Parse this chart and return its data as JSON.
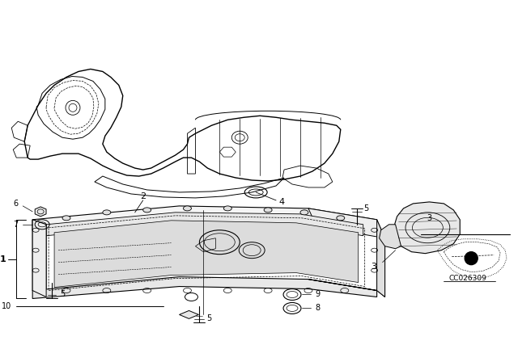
{
  "bg_color": "#ffffff",
  "line_color": "#000000",
  "diagram_code_text": "CC026309"
}
